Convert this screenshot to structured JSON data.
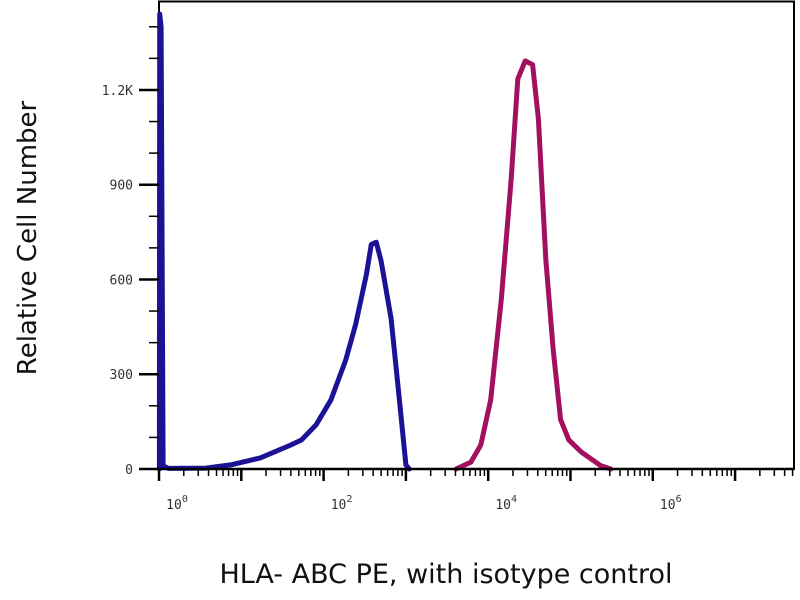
{
  "chart_data": {
    "type": "line",
    "title": "",
    "xlabel": "HLA- ABC PE, with isotype control",
    "ylabel": "Relative Cell Number",
    "x_scale": "log",
    "xlim": [
      1,
      52000000
    ],
    "ylim": [
      0,
      1480
    ],
    "grid": false,
    "x_ticks": [
      {
        "value": 1,
        "base": "10",
        "exp": "0"
      },
      {
        "value": 100,
        "base": "10",
        "exp": "2"
      },
      {
        "value": 10000,
        "base": "10",
        "exp": "4"
      },
      {
        "value": 1000000,
        "base": "10",
        "exp": "6"
      }
    ],
    "y_ticks": [
      {
        "value": 0,
        "label": "0"
      },
      {
        "value": 300,
        "label": "300"
      },
      {
        "value": 600,
        "label": "600"
      },
      {
        "value": 900,
        "label": "900"
      },
      {
        "value": 1200,
        "label": "1.2K"
      }
    ],
    "series": [
      {
        "color": "#1c1296",
        "points": [
          [
            1.01,
            0
          ],
          [
            1.02,
            1440
          ],
          [
            1.06,
            1400
          ],
          [
            1.12,
            10
          ],
          [
            1.3,
            2
          ],
          [
            3.7,
            3
          ],
          [
            7.4,
            13
          ],
          [
            17,
            35
          ],
          [
            40,
            76
          ],
          [
            54,
            92
          ],
          [
            81,
            140
          ],
          [
            123,
            219
          ],
          [
            186,
            346
          ],
          [
            245,
            457
          ],
          [
            331,
            616
          ],
          [
            380,
            711
          ],
          [
            437,
            718
          ],
          [
            501,
            657
          ],
          [
            661,
            476
          ],
          [
            832,
            222
          ],
          [
            1000,
            13
          ],
          [
            1096,
            0
          ]
        ]
      },
      {
        "color": "#a3105e",
        "points": [
          [
            4074,
            0
          ],
          [
            6166,
            22
          ],
          [
            8128,
            76
          ],
          [
            10720,
            219
          ],
          [
            14450,
            537
          ],
          [
            19050,
            918
          ],
          [
            22900,
            1235
          ],
          [
            28180,
            1292
          ],
          [
            34670,
            1280
          ],
          [
            40740,
            1108
          ],
          [
            50120,
            664
          ],
          [
            61660,
            378
          ],
          [
            75860,
            156
          ],
          [
            95500,
            92
          ],
          [
            134900,
            54
          ],
          [
            234400,
            10
          ],
          [
            309000,
            0
          ]
        ]
      }
    ]
  }
}
